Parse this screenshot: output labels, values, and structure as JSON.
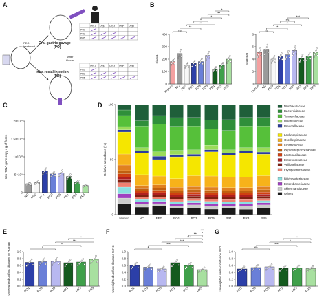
{
  "panels": {
    "A": "A",
    "B": "B",
    "C": "C",
    "D": "D",
    "E": "E",
    "F": "F",
    "G": "G"
  },
  "panel_a": {
    "oral_label": "Oral-gastric gavage",
    "oral_abbr": "(PO)",
    "rectal_label": "Intra-rectal injection",
    "rectal_abbr": "(PR)",
    "peg_label": "PEG",
    "peg_sub": "treatment",
    "after_label": "After",
    "after_sub": "6hours",
    "table_head": [
      "",
      "Day1",
      "Day2",
      "Day3",
      "Day4",
      "Day5"
    ],
    "po_rows": [
      "PO1",
      "PO3",
      "PO5"
    ],
    "pr_rows": [
      "PR1",
      "PR3",
      "PR5"
    ]
  },
  "colors": {
    "Human": "#f4a0a0",
    "NC": "#9a9a9a",
    "PEG": "#f7f7f7",
    "PO1": "#2c3fa8",
    "PO3": "#6a7fd8",
    "PO5": "#b8b8f0",
    "PR1": "#145a1e",
    "PR3": "#3fa04a",
    "PR5": "#a8e0a0"
  },
  "chart_data": [
    {
      "panel": "B-left",
      "type": "bar",
      "ylabel": "Chao1",
      "categories": [
        "Human",
        "NC",
        "PEG",
        "PO1",
        "PO3",
        "PO5",
        "PR1",
        "PR3",
        "PR5"
      ],
      "values": [
        180,
        245,
        150,
        165,
        180,
        230,
        120,
        150,
        200
      ],
      "ylim": [
        0,
        400
      ],
      "yticks": [
        "0",
        "100",
        "200",
        "300",
        "400"
      ],
      "annotations": [
        "ns",
        "**",
        "**",
        "*",
        "*",
        "***",
        "*"
      ]
    },
    {
      "panel": "B-right",
      "type": "bar",
      "ylabel": "Shannon",
      "categories": [
        "Human",
        "NC",
        "PEG",
        "PO1",
        "PO3",
        "PO5",
        "PR1",
        "PR3",
        "PR5"
      ],
      "values": [
        5.1,
        5.6,
        4.0,
        4.4,
        4.7,
        5.4,
        4.2,
        4.5,
        5.1
      ],
      "ylim": [
        0,
        8
      ],
      "yticks": [
        "0",
        "2",
        "4",
        "6",
        "8"
      ],
      "annotations": [
        "ns",
        "**",
        "**",
        "ns",
        "***"
      ]
    },
    {
      "panel": "C",
      "type": "bar",
      "ylabel": "16s rRNA gene copy / g of feces",
      "categories": [
        "NC",
        "PEG",
        "PO1",
        "PO3",
        "PO5",
        "PR1",
        "PR3",
        "PR5"
      ],
      "values": [
        2.5,
        2.8,
        6.0,
        5.2,
        5.5,
        4.5,
        3.0,
        2.0
      ],
      "ylim": [
        0,
        20
      ],
      "yticks": [
        "0",
        "5×10⁹",
        "1×10¹⁰",
        "1.5×10¹⁰",
        "2×10¹⁰"
      ]
    },
    {
      "panel": "D",
      "type": "bar",
      "ylabel": "Relative abundance (%)",
      "categories": [
        "Human",
        "NC",
        "PEG",
        "PO1",
        "PO3",
        "PO5",
        "PR1",
        "PR3",
        "PR5"
      ],
      "yticks": [
        "0",
        "50",
        "100"
      ],
      "ylim": [
        0,
        100
      ],
      "series": [
        {
          "name": "Muribaculaceae",
          "color": "#1f5f3a",
          "values": [
            5,
            15,
            10,
            12,
            12,
            14,
            14,
            12,
            12
          ]
        },
        {
          "name": "Bacteroidaceae",
          "color": "#2f8f3a",
          "values": [
            5,
            5,
            8,
            8,
            8,
            8,
            10,
            8,
            8
          ]
        },
        {
          "name": "Tannerellaceae",
          "color": "#56c03a",
          "values": [
            10,
            20,
            25,
            22,
            22,
            15,
            18,
            20,
            20
          ]
        },
        {
          "name": "Rikenellaceae",
          "color": "#9bdc5a",
          "values": [
            3,
            3,
            4,
            4,
            4,
            4,
            3,
            3,
            4
          ]
        },
        {
          "name": "Prevotellaceae",
          "color": "#2b3d9a",
          "values": [
            2,
            2,
            3,
            2,
            2,
            2,
            2,
            2,
            2
          ]
        },
        {
          "name": "Lachnospiraceae",
          "color": "#f5e600",
          "values": [
            20,
            20,
            15,
            20,
            18,
            22,
            20,
            22,
            20
          ]
        },
        {
          "name": "Oscillospiraceae",
          "color": "#f7b21a",
          "values": [
            10,
            10,
            8,
            8,
            10,
            10,
            10,
            10,
            10
          ]
        },
        {
          "name": "Clostridiaceae",
          "color": "#e08020",
          "values": [
            5,
            3,
            3,
            3,
            3,
            3,
            3,
            3,
            3
          ]
        },
        {
          "name": "Peptostreptococcaceae",
          "color": "#c06010",
          "values": [
            3,
            2,
            2,
            2,
            2,
            2,
            2,
            2,
            2
          ]
        },
        {
          "name": "Lactobacillaceae",
          "color": "#d04010",
          "values": [
            3,
            2,
            2,
            2,
            2,
            2,
            2,
            2,
            2
          ]
        },
        {
          "name": "Enterococcaceae",
          "color": "#b02020",
          "values": [
            2,
            2,
            2,
            2,
            2,
            2,
            2,
            2,
            2
          ]
        },
        {
          "name": "Veillonellaceae",
          "color": "#802010",
          "values": [
            3,
            2,
            2,
            2,
            2,
            2,
            2,
            2,
            2
          ]
        },
        {
          "name": "Erysipelotrichaceae",
          "color": "#f08070",
          "values": [
            4,
            2,
            2,
            2,
            2,
            2,
            2,
            2,
            2
          ]
        },
        {
          "name": "Bifidobacteriaceae",
          "color": "#8ae0e0",
          "values": [
            6,
            2,
            2,
            2,
            2,
            2,
            2,
            2,
            2
          ]
        },
        {
          "name": "Enterobacteriaceae",
          "color": "#a040c0",
          "values": [
            4,
            2,
            2,
            2,
            2,
            2,
            2,
            2,
            2
          ]
        },
        {
          "name": "Akkermansiaceae",
          "color": "#cccccc",
          "values": [
            5,
            3,
            2,
            2,
            3,
            3,
            2,
            3,
            3
          ]
        },
        {
          "name": "Others",
          "color": "#1a1a1a",
          "values": [
            10,
            7,
            8,
            6,
            6,
            5,
            6,
            5,
            6
          ]
        }
      ]
    },
    {
      "panel": "E",
      "type": "bar",
      "ylabel": "Unweighted unifrac distance to Human",
      "categories": [
        "PO1",
        "PO3",
        "PO5",
        "PR1",
        "PR3",
        "PR5"
      ],
      "values": [
        0.69,
        0.71,
        0.72,
        0.68,
        0.7,
        0.78
      ],
      "ylim": [
        0.0,
        1.0
      ],
      "yticks": [
        "0.0",
        "0.2",
        "0.4",
        "0.6",
        "0.8",
        "1.0"
      ],
      "annotations": [
        "*",
        "*",
        "***",
        "*"
      ]
    },
    {
      "panel": "F",
      "type": "bar",
      "ylabel": "Unweighted unifrac distance to NC",
      "categories": [
        "PO1",
        "PO3",
        "PO5",
        "PR1",
        "PR3",
        "PR5"
      ],
      "values": [
        0.6,
        0.55,
        0.5,
        0.68,
        0.6,
        0.48
      ],
      "ylim": [
        0.0,
        1.0
      ],
      "yticks": [
        "0.0",
        "0.2",
        "0.4",
        "0.6",
        "0.8",
        "1.0"
      ],
      "annotations": [
        "*",
        "***",
        "***",
        "***",
        "***",
        "***"
      ]
    },
    {
      "panel": "G",
      "type": "bar",
      "ylabel": "Unweighted unifrac distance PEG",
      "categories": [
        "PO1",
        "PO3",
        "PO5",
        "PR1",
        "PR3",
        "PR5"
      ],
      "values": [
        0.5,
        0.54,
        0.56,
        0.52,
        0.53,
        0.51
      ],
      "ylim": [
        0.0,
        1.0
      ],
      "yticks": [
        "0.0",
        "0.2",
        "0.4",
        "0.6",
        "0.8",
        "1.0"
      ],
      "annotations": [
        "***",
        "***",
        "*",
        "*"
      ]
    }
  ]
}
